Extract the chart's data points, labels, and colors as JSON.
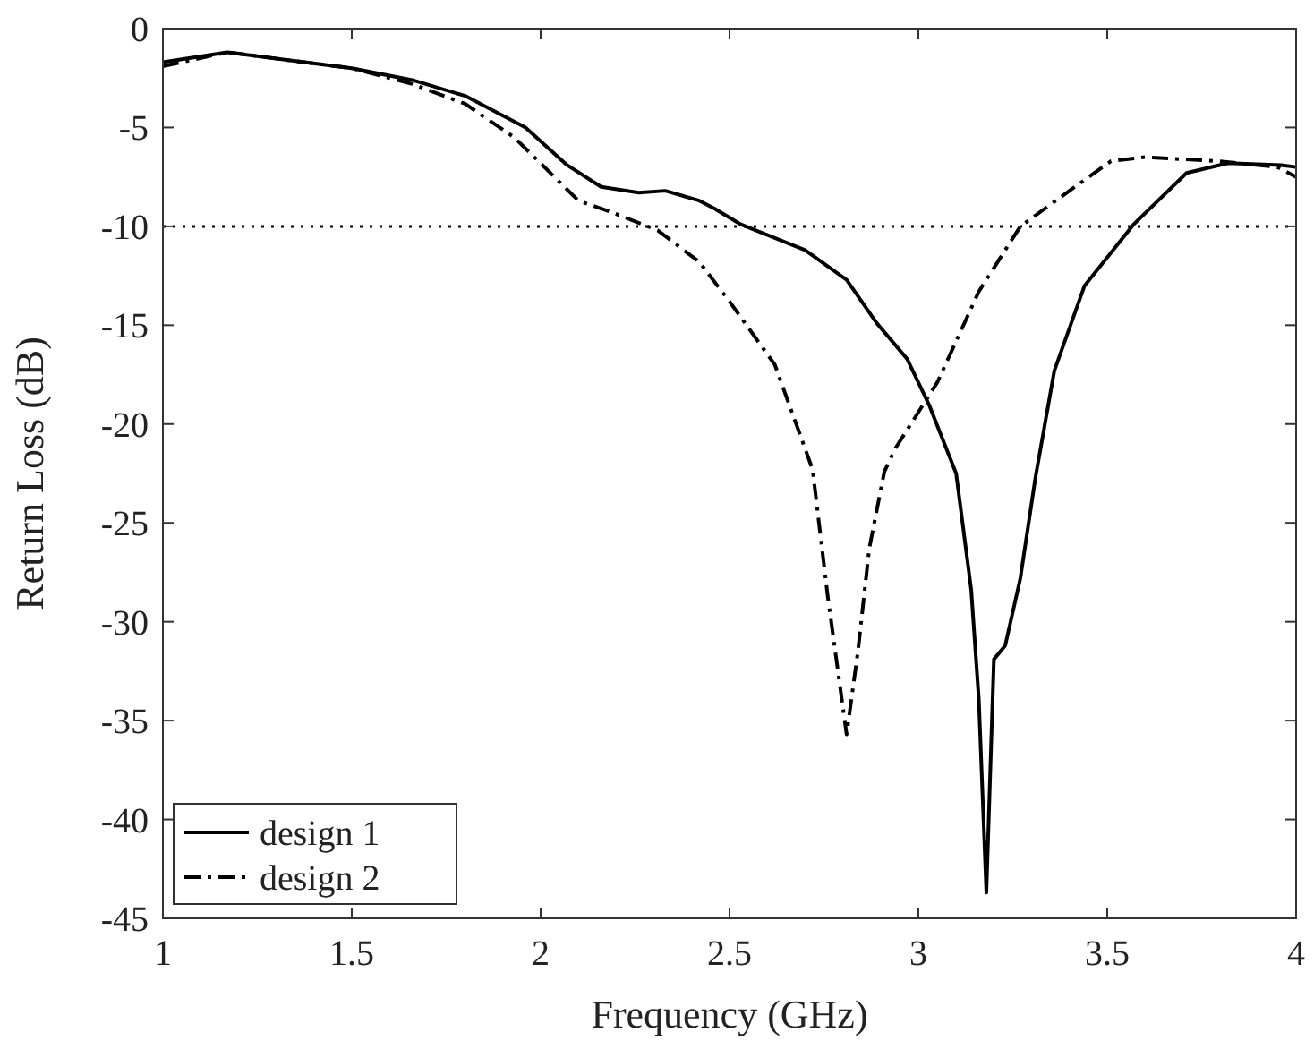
{
  "chart_data": {
    "type": "line",
    "xlabel": "Frequency (GHz)",
    "ylabel": "Return Loss (dB)",
    "xlim": [
      1,
      4
    ],
    "xticks": [
      1,
      1.5,
      2,
      2.5,
      3,
      3.5,
      4
    ],
    "ylim": [
      -45,
      0
    ],
    "yticks": [
      -45,
      -40,
      -35,
      -30,
      -25,
      -20,
      -15,
      -10,
      -5,
      0
    ],
    "grid": false,
    "legend": "bottom left",
    "ref_lines": [
      {
        "axis": "y",
        "value": -10,
        "color": "#000000",
        "line_style": "dotted"
      }
    ],
    "series": [
      {
        "name": "design 1",
        "color": "#000000",
        "line_style": "solid",
        "x": [
          1.0,
          1.17,
          1.5,
          1.66,
          1.8,
          1.96,
          2.07,
          2.16,
          2.26,
          2.33,
          2.42,
          2.46,
          2.53,
          2.7,
          2.81,
          2.89,
          2.97,
          3.03,
          3.1,
          3.14,
          3.16,
          3.18,
          3.2,
          3.23,
          3.27,
          3.31,
          3.36,
          3.44,
          3.57,
          3.71,
          3.82,
          3.96,
          4.0
        ],
        "values": [
          -1.7,
          -1.2,
          -2.0,
          -2.6,
          -3.4,
          -5.0,
          -6.9,
          -8.0,
          -8.3,
          -8.2,
          -8.7,
          -9.1,
          -9.9,
          -11.2,
          -12.7,
          -14.9,
          -16.7,
          -19.1,
          -22.5,
          -28.4,
          -33.9,
          -43.7,
          -31.9,
          -31.2,
          -27.8,
          -22.7,
          -17.3,
          -13.0,
          -9.9,
          -7.3,
          -6.8,
          -6.9,
          -7.0
        ]
      },
      {
        "name": "design 2",
        "color": "#000000",
        "line_style": "dashdot",
        "x": [
          1.0,
          1.17,
          1.5,
          1.66,
          1.8,
          1.93,
          2.01,
          2.1,
          2.19,
          2.31,
          2.42,
          2.5,
          2.62,
          2.72,
          2.76,
          2.81,
          2.84,
          2.87,
          2.91,
          2.94,
          3.05,
          3.16,
          3.27,
          3.4,
          3.51,
          3.6,
          3.79,
          3.95,
          4.0
        ],
        "values": [
          -1.9,
          -1.2,
          -2.0,
          -2.8,
          -3.8,
          -5.5,
          -7.0,
          -8.7,
          -9.3,
          -10.2,
          -11.8,
          -13.8,
          -17.0,
          -22.3,
          -28.7,
          -35.7,
          -31.5,
          -26.3,
          -22.4,
          -21.2,
          -17.9,
          -13.3,
          -10.0,
          -8.2,
          -6.7,
          -6.5,
          -6.7,
          -7.0,
          -7.5
        ]
      }
    ]
  }
}
